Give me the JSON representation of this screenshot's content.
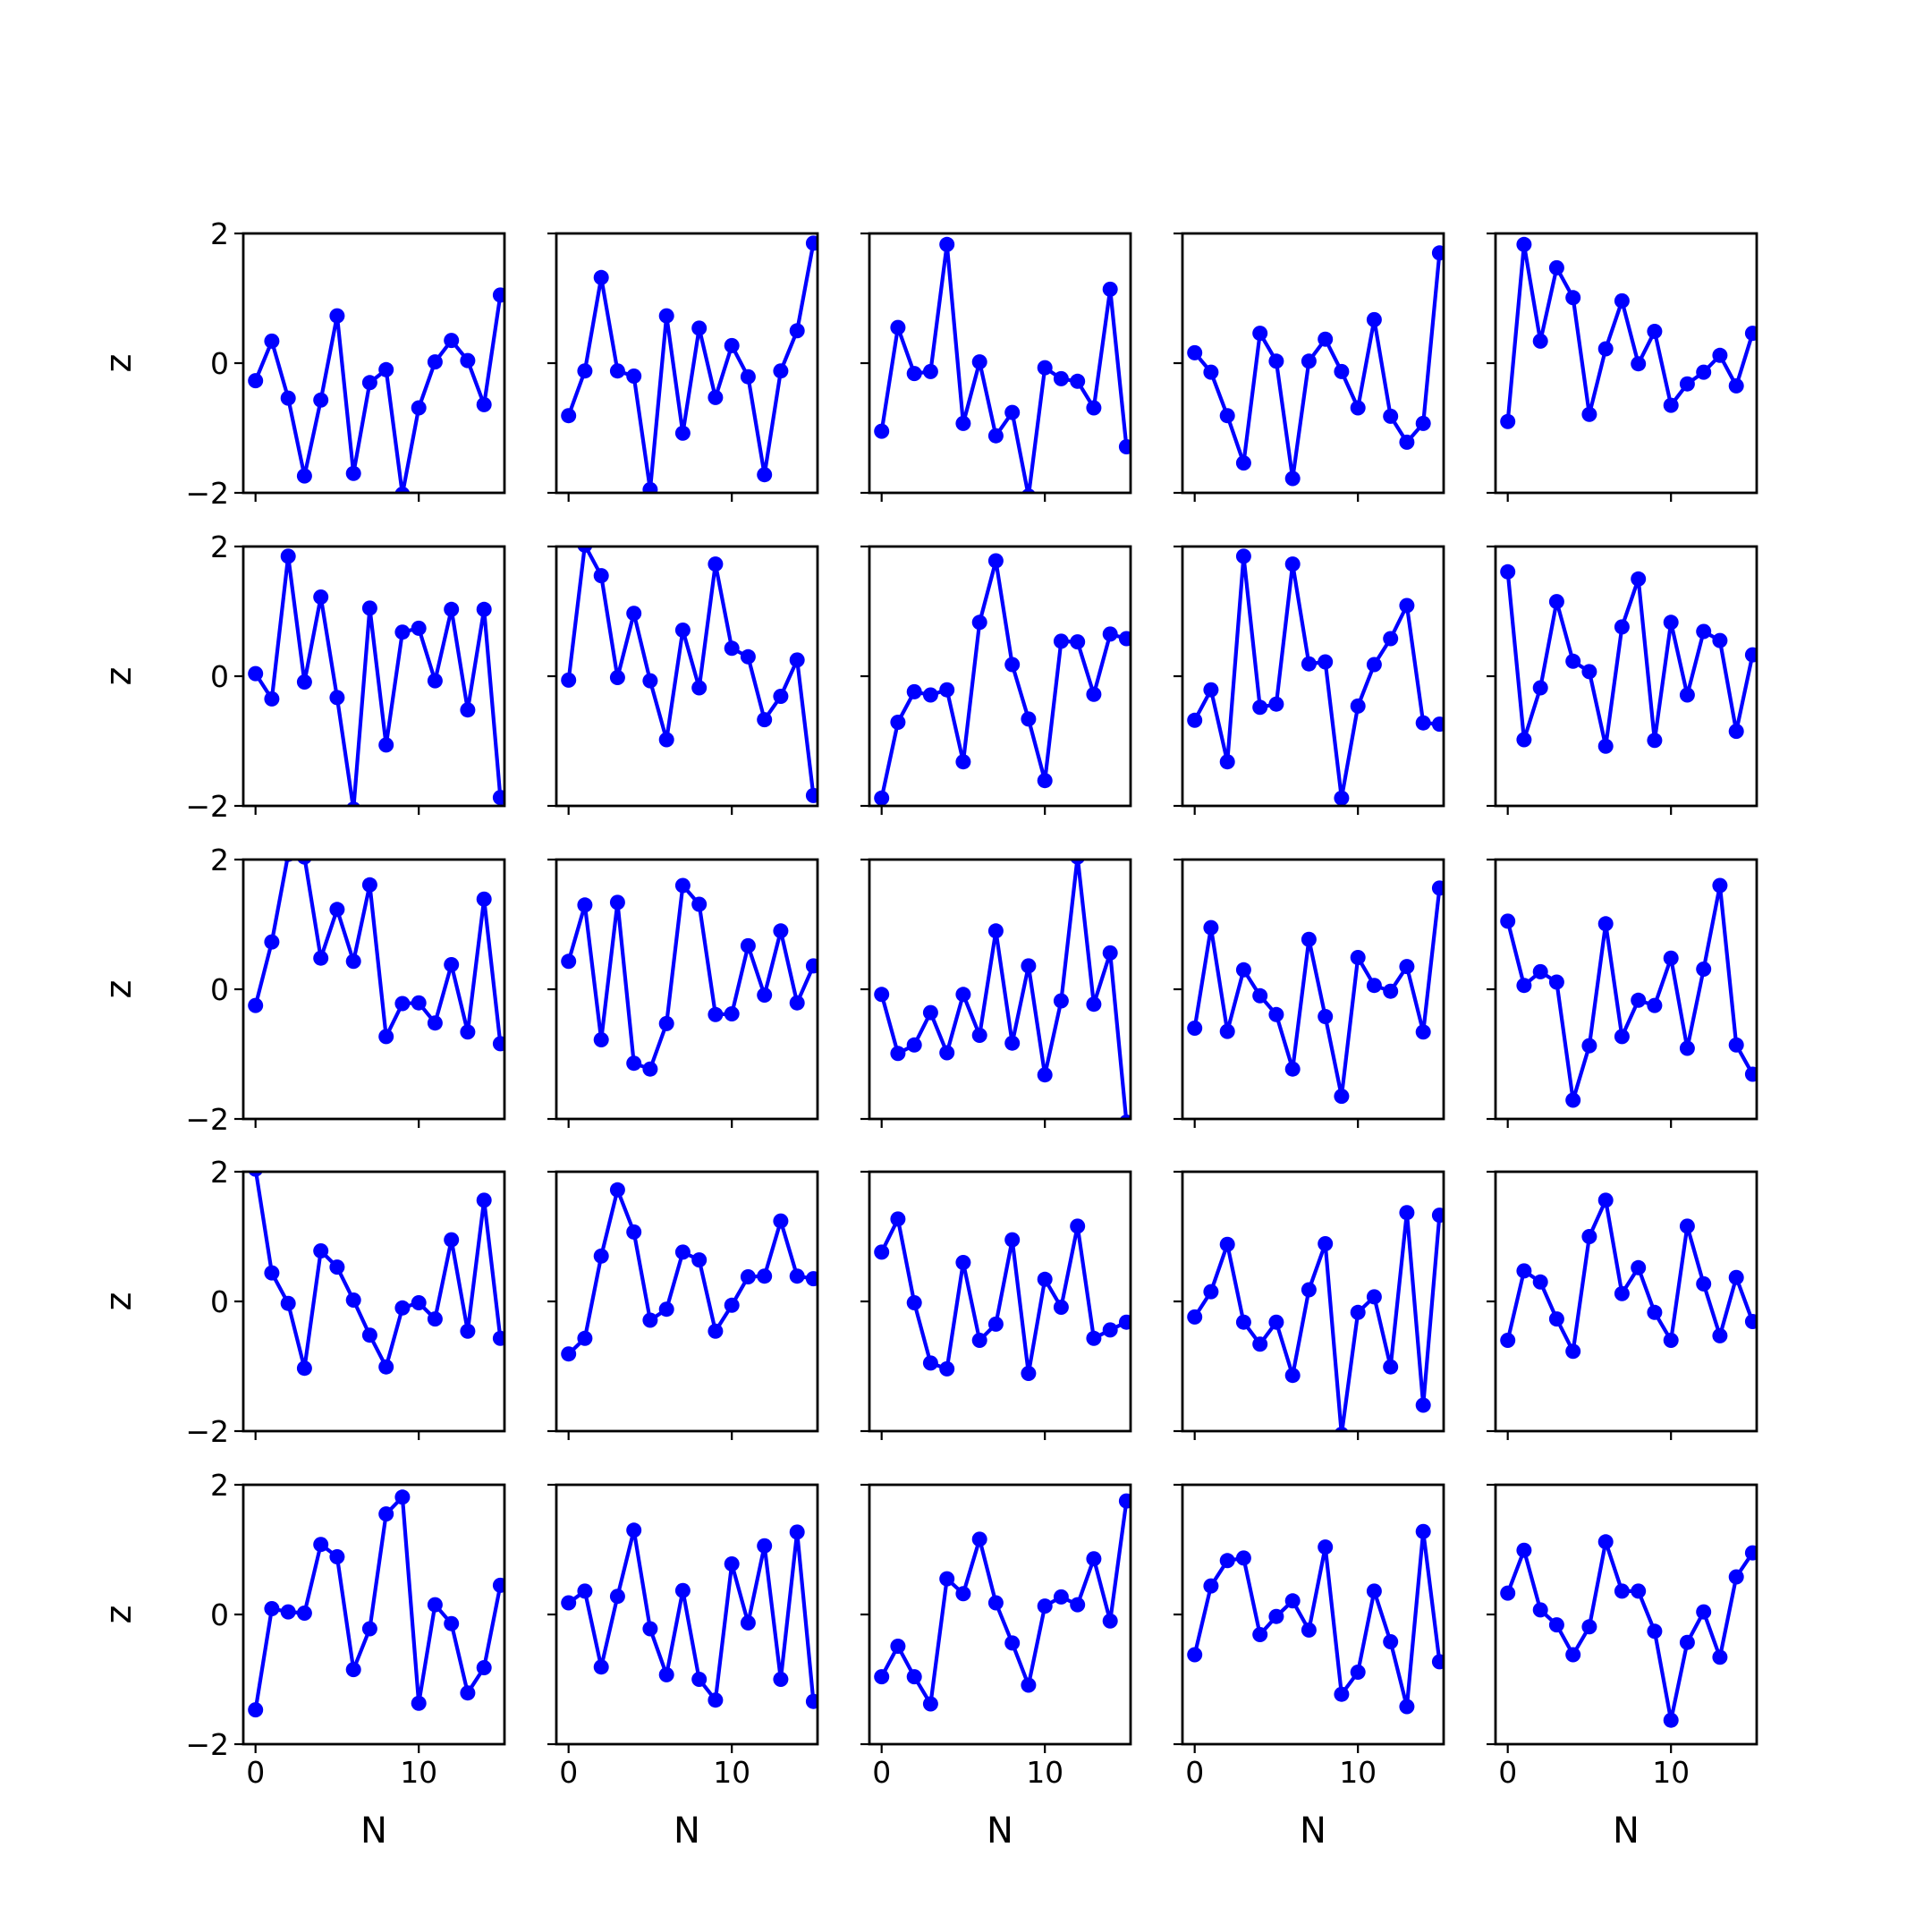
{
  "chart_data": {
    "type": "line",
    "layout": {
      "rows": 5,
      "cols": 5
    },
    "xlabel": "N",
    "ylabel": "z",
    "xlim": [
      -0.75,
      15.25
    ],
    "ylim": [
      -2,
      2
    ],
    "xticks": [
      0,
      10
    ],
    "yticks": [
      -2,
      0,
      2
    ],
    "xtick_labels": [
      "0",
      "10"
    ],
    "ytick_labels": [
      "−2",
      "0",
      "2"
    ],
    "line_color": "#0000ff",
    "marker": "circle",
    "x": [
      0,
      1,
      2,
      3,
      4,
      5,
      6,
      7,
      8,
      9,
      10,
      11,
      12,
      13,
      14,
      15
    ],
    "panels": [
      {
        "values": [
          -0.27,
          0.34,
          -0.54,
          -1.74,
          -0.57,
          0.73,
          -1.7,
          -0.3,
          -0.1,
          -2.02,
          -0.69,
          0.02,
          0.35,
          0.04,
          -0.64,
          1.05
        ]
      },
      {
        "values": [
          -0.81,
          -0.12,
          1.32,
          -0.12,
          -0.2,
          -1.95,
          0.73,
          -1.08,
          0.54,
          -0.53,
          0.27,
          -0.21,
          -1.72,
          -0.12,
          0.5,
          1.85
        ]
      },
      {
        "values": [
          -1.05,
          0.55,
          -0.16,
          -0.13,
          1.83,
          -0.93,
          0.02,
          -1.12,
          -0.76,
          -2.05,
          -0.07,
          -0.24,
          -0.28,
          -0.69,
          1.14,
          -1.29
        ]
      },
      {
        "values": [
          0.16,
          -0.14,
          -0.81,
          -1.54,
          0.46,
          0.03,
          -1.78,
          0.03,
          0.37,
          -0.13,
          -0.69,
          0.67,
          -0.82,
          -1.22,
          -0.93,
          1.7
        ]
      },
      {
        "values": [
          -0.9,
          1.83,
          0.34,
          1.47,
          1.01,
          -0.79,
          0.22,
          0.96,
          -0.01,
          0.49,
          -0.65,
          -0.32,
          -0.14,
          0.12,
          -0.35,
          0.46
        ]
      },
      {
        "values": [
          0.04,
          -0.35,
          1.85,
          -0.09,
          1.22,
          -0.33,
          -2.05,
          1.05,
          -1.06,
          0.68,
          0.74,
          -0.07,
          1.03,
          -0.52,
          1.03,
          -1.87
        ]
      },
      {
        "values": [
          -0.06,
          2.02,
          1.55,
          -0.02,
          0.97,
          -0.07,
          -0.98,
          0.71,
          -0.18,
          1.73,
          0.43,
          0.3,
          -0.67,
          -0.31,
          0.25,
          -1.84
        ]
      },
      {
        "values": [
          -1.88,
          -0.71,
          -0.24,
          -0.29,
          -0.21,
          -1.32,
          0.83,
          1.78,
          0.18,
          -0.66,
          -1.61,
          0.54,
          0.53,
          -0.28,
          0.65,
          0.58
        ]
      },
      {
        "values": [
          -0.68,
          -0.21,
          -1.32,
          1.85,
          -0.48,
          -0.43,
          1.73,
          0.19,
          0.22,
          -1.88,
          -0.46,
          0.18,
          0.58,
          1.09,
          -0.72,
          -0.74
        ]
      },
      {
        "values": [
          1.61,
          -0.98,
          -0.18,
          1.15,
          0.23,
          0.07,
          -1.08,
          0.76,
          1.5,
          -0.99,
          0.83,
          -0.29,
          0.69,
          0.55,
          -0.85,
          0.33
        ]
      },
      {
        "values": [
          -0.25,
          0.73,
          2.08,
          2.04,
          0.48,
          1.23,
          0.43,
          1.61,
          -0.73,
          -0.22,
          -0.21,
          -0.52,
          0.38,
          -0.66,
          1.39,
          -0.84
        ]
      },
      {
        "values": [
          0.43,
          1.3,
          -0.78,
          1.34,
          -1.14,
          -1.23,
          -0.53,
          1.6,
          1.31,
          -0.39,
          -0.38,
          0.67,
          -0.09,
          0.9,
          -0.21,
          0.36
        ]
      },
      {
        "values": [
          -0.08,
          -0.99,
          -0.86,
          -0.36,
          -0.98,
          -0.08,
          -0.71,
          0.9,
          -0.83,
          0.36,
          -1.32,
          -0.18,
          2.04,
          -0.23,
          0.56,
          -2.05
        ]
      },
      {
        "values": [
          -0.6,
          0.95,
          -0.65,
          0.3,
          -0.1,
          -0.39,
          -1.23,
          0.77,
          -0.42,
          -1.65,
          0.49,
          0.06,
          -0.03,
          0.35,
          -0.66,
          1.56
        ]
      },
      {
        "values": [
          1.05,
          0.06,
          0.27,
          0.11,
          -1.71,
          -0.87,
          1.01,
          -0.73,
          -0.17,
          -0.25,
          0.48,
          -0.91,
          0.31,
          1.6,
          -0.86,
          -1.31
        ]
      },
      {
        "values": [
          2.04,
          0.44,
          -0.03,
          -1.03,
          0.78,
          0.53,
          0.02,
          -0.52,
          -1.01,
          -0.1,
          -0.02,
          -0.27,
          0.95,
          -0.46,
          1.56,
          -0.57
        ]
      },
      {
        "values": [
          -0.81,
          -0.57,
          0.7,
          1.72,
          1.07,
          -0.29,
          -0.12,
          0.76,
          0.64,
          -0.46,
          -0.06,
          0.38,
          0.39,
          1.24,
          0.39,
          0.35
        ]
      },
      {
        "values": [
          0.76,
          1.27,
          -0.02,
          -0.95,
          -1.04,
          0.6,
          -0.6,
          -0.35,
          0.95,
          -1.11,
          0.34,
          -0.09,
          1.16,
          -0.57,
          -0.44,
          -0.32
        ]
      },
      {
        "values": [
          -0.24,
          0.15,
          0.88,
          -0.32,
          -0.66,
          -0.32,
          -1.14,
          0.18,
          0.89,
          -2.05,
          -0.17,
          0.07,
          -1.01,
          1.37,
          -1.6,
          1.33
        ]
      },
      {
        "values": [
          -0.6,
          0.47,
          0.3,
          -0.27,
          -0.77,
          1.0,
          1.56,
          0.12,
          0.52,
          -0.17,
          -0.6,
          1.16,
          0.27,
          -0.53,
          0.37,
          -0.31
        ]
      },
      {
        "values": [
          -1.47,
          0.09,
          0.04,
          0.02,
          1.08,
          0.89,
          -0.85,
          -0.22,
          1.55,
          1.81,
          -1.37,
          0.15,
          -0.14,
          -1.21,
          -0.82,
          0.45
        ]
      },
      {
        "values": [
          0.18,
          0.36,
          -0.81,
          0.28,
          1.3,
          -0.22,
          -0.93,
          0.37,
          -1.0,
          -1.32,
          0.78,
          -0.13,
          1.06,
          -1.0,
          1.27,
          -1.34
        ]
      },
      {
        "values": [
          -0.96,
          -0.49,
          -0.96,
          -1.38,
          0.55,
          0.32,
          1.16,
          0.18,
          -0.44,
          -1.09,
          0.13,
          0.27,
          0.15,
          0.86,
          -0.1,
          1.75
        ]
      },
      {
        "values": [
          -0.62,
          0.44,
          0.83,
          0.87,
          -0.31,
          -0.03,
          0.21,
          -0.24,
          1.04,
          -1.23,
          -0.89,
          0.36,
          -0.42,
          -1.42,
          1.28,
          -0.73
        ]
      },
      {
        "values": [
          0.33,
          0.99,
          0.07,
          -0.16,
          -0.62,
          -0.19,
          1.12,
          0.36,
          0.36,
          -0.26,
          -1.63,
          -0.43,
          0.04,
          -0.66,
          0.58,
          0.95
        ]
      }
    ]
  }
}
